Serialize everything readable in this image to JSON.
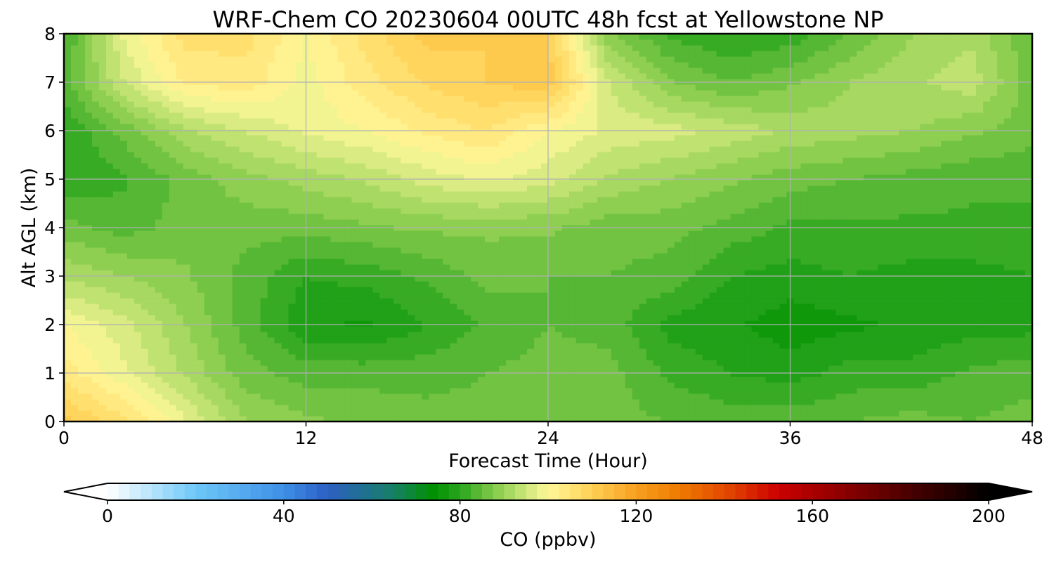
{
  "chart_data": {
    "type": "heatmap",
    "title": "WRF-Chem CO  20230604 00UTC 48h fcst at Yellowstone NP",
    "xlabel": "Forecast Time (Hour)",
    "ylabel": "Alt AGL (km)",
    "xlim": [
      0,
      48
    ],
    "ylim": [
      0,
      8
    ],
    "xticks": [
      0,
      12,
      24,
      36,
      48
    ],
    "yticks": [
      0,
      1,
      2,
      3,
      4,
      5,
      6,
      7,
      8
    ],
    "grid": true,
    "x": [
      0,
      3,
      6,
      9,
      12,
      15,
      18,
      21,
      24,
      27,
      30,
      33,
      36,
      39,
      42,
      45,
      48
    ],
    "y": [
      0,
      1,
      2,
      3,
      4,
      5,
      6,
      7,
      8
    ],
    "z": [
      [
        111,
        106,
        98,
        90,
        88,
        87,
        86,
        86,
        87,
        86,
        85,
        84,
        84,
        85,
        86,
        85,
        86
      ],
      [
        104,
        98,
        92,
        86,
        84,
        84,
        84,
        85,
        86,
        86,
        82,
        80,
        79,
        81,
        81,
        83,
        84
      ],
      [
        100,
        96,
        90,
        84,
        78,
        77,
        80,
        83,
        85,
        84,
        79,
        78,
        76,
        77,
        78,
        79,
        79
      ],
      [
        92,
        90,
        88,
        84,
        80,
        81,
        83,
        86,
        85,
        85,
        84,
        80,
        79,
        80,
        79,
        79,
        80
      ],
      [
        86,
        84,
        86,
        86,
        86,
        87,
        88,
        88,
        88,
        86,
        86,
        84,
        82,
        82,
        82,
        82,
        82
      ],
      [
        80,
        82,
        86,
        89,
        91,
        93,
        96,
        98,
        96,
        92,
        90,
        88,
        86,
        85,
        84,
        83,
        83
      ],
      [
        80,
        86,
        92,
        95,
        98,
        100,
        103,
        105,
        100,
        97,
        96,
        94,
        92,
        91,
        90,
        88,
        86
      ],
      [
        84,
        95,
        103,
        104,
        99,
        104,
        108,
        110,
        112,
        95,
        88,
        85,
        87,
        90,
        92,
        94,
        86
      ],
      [
        82,
        98,
        106,
        106,
        100,
        106,
        111,
        110,
        110,
        88,
        82,
        80,
        81,
        85,
        90,
        92,
        85
      ]
    ],
    "colorbar": {
      "label": "CO  (ppbv)",
      "min": 0,
      "max": 200,
      "ticks": [
        0,
        40,
        80,
        120,
        160,
        200
      ],
      "extend": "both",
      "stops": [
        {
          "v": 0,
          "c": "#ffffff"
        },
        {
          "v": 20,
          "c": "#6ec8f8"
        },
        {
          "v": 40,
          "c": "#3e8fe6"
        },
        {
          "v": 50,
          "c": "#2c5fc4"
        },
        {
          "v": 65,
          "c": "#168064"
        },
        {
          "v": 74,
          "c": "#009000"
        },
        {
          "v": 80,
          "c": "#2aa51e"
        },
        {
          "v": 88,
          "c": "#86cc4c"
        },
        {
          "v": 96,
          "c": "#d6ea80"
        },
        {
          "v": 100,
          "c": "#fff89a"
        },
        {
          "v": 110,
          "c": "#ffd054"
        },
        {
          "v": 120,
          "c": "#f8a020"
        },
        {
          "v": 130,
          "c": "#ee7a00"
        },
        {
          "v": 142,
          "c": "#e04000"
        },
        {
          "v": 152,
          "c": "#cc0000"
        },
        {
          "v": 166,
          "c": "#900000"
        },
        {
          "v": 182,
          "c": "#4a0000"
        },
        {
          "v": 200,
          "c": "#000000"
        }
      ]
    }
  }
}
